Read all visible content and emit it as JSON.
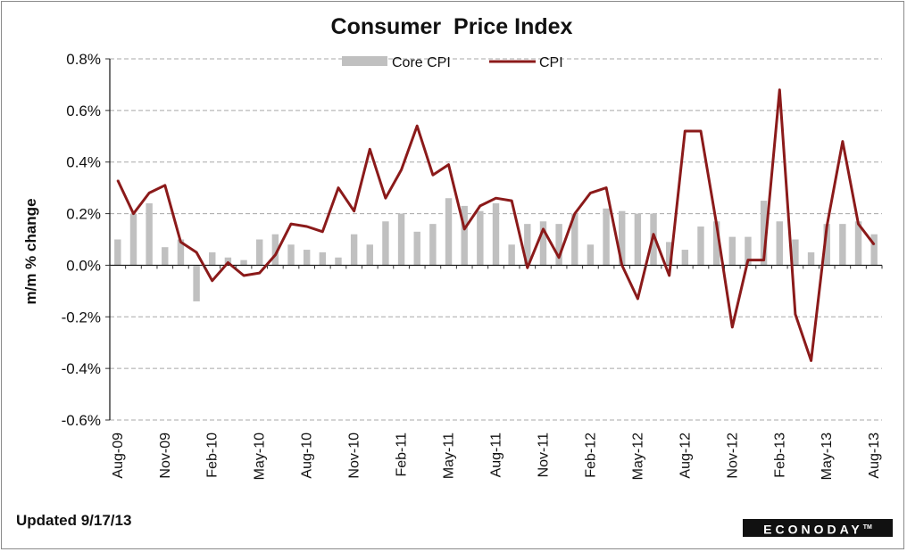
{
  "chart_data": {
    "type": "bar",
    "title": "Consumer  Price Index",
    "ylabel": "m/m % change",
    "xlabel": "",
    "ylim": [
      -0.6,
      0.8
    ],
    "yticks": [
      "0.8%",
      "0.6%",
      "0.4%",
      "0.2%",
      "0.0%",
      "-0.2%",
      "-0.4%",
      "-0.6%"
    ],
    "ytick_values": [
      0.8,
      0.6,
      0.4,
      0.2,
      0.0,
      -0.2,
      -0.4,
      -0.6
    ],
    "grid": true,
    "legend_position": "top",
    "months": [
      "Aug-09",
      "Sep-09",
      "Oct-09",
      "Nov-09",
      "Dec-09",
      "Jan-10",
      "Feb-10",
      "Mar-10",
      "Apr-10",
      "May-10",
      "Jun-10",
      "Jul-10",
      "Aug-10",
      "Sep-10",
      "Oct-10",
      "Nov-10",
      "Dec-10",
      "Jan-11",
      "Feb-11",
      "Mar-11",
      "Apr-11",
      "May-11",
      "Jun-11",
      "Jul-11",
      "Aug-11",
      "Sep-11",
      "Oct-11",
      "Nov-11",
      "Dec-11",
      "Jan-12",
      "Feb-12",
      "Mar-12",
      "Apr-12",
      "May-12",
      "Jun-12",
      "Jul-12",
      "Aug-12",
      "Sep-12",
      "Oct-12",
      "Nov-12",
      "Dec-12",
      "Jan-13",
      "Feb-13",
      "Mar-13",
      "Apr-13",
      "May-13",
      "Jun-13",
      "Jul-13",
      "Aug-13"
    ],
    "xtick_labels": [
      "Aug-09",
      "Nov-09",
      "Feb-10",
      "May-10",
      "Aug-10",
      "Nov-10",
      "Feb-11",
      "May-11",
      "Aug-11",
      "Nov-11",
      "Feb-12",
      "May-12",
      "Aug-12",
      "Nov-12",
      "Feb-13",
      "May-13",
      "Aug-13"
    ],
    "series": [
      {
        "name": "Core CPI",
        "type": "bar",
        "color": "#c0c0c0",
        "values": [
          0.1,
          0.2,
          0.24,
          0.07,
          0.1,
          -0.14,
          0.05,
          0.03,
          0.02,
          0.1,
          0.12,
          0.08,
          0.06,
          0.05,
          0.03,
          0.12,
          0.08,
          0.17,
          0.2,
          0.13,
          0.16,
          0.26,
          0.23,
          0.21,
          0.24,
          0.08,
          0.16,
          0.17,
          0.16,
          0.2,
          0.08,
          0.22,
          0.21,
          0.2,
          0.2,
          0.09,
          0.06,
          0.15,
          0.17,
          0.11,
          0.11,
          0.25,
          0.17,
          0.1,
          0.05,
          0.16,
          0.16,
          0.17,
          0.12
        ]
      },
      {
        "name": "CPI",
        "type": "line",
        "color": "#8b1a1a",
        "values": [
          0.33,
          0.2,
          0.28,
          0.31,
          0.09,
          0.05,
          -0.06,
          0.01,
          -0.04,
          -0.03,
          0.04,
          0.16,
          0.15,
          0.13,
          0.3,
          0.21,
          0.45,
          0.26,
          0.37,
          0.54,
          0.35,
          0.39,
          0.14,
          0.23,
          0.26,
          0.25,
          -0.01,
          0.14,
          0.03,
          0.2,
          0.28,
          0.3,
          0.0,
          -0.13,
          0.12,
          -0.04,
          0.52,
          0.52,
          0.16,
          -0.24,
          0.02,
          0.02,
          0.68,
          -0.19,
          -0.37,
          0.15,
          0.48,
          0.16,
          0.08
        ]
      }
    ]
  },
  "footer": {
    "updated": "Updated 9/17/13",
    "logo_text": "ECONODAY",
    "logo_tm": "TM"
  }
}
